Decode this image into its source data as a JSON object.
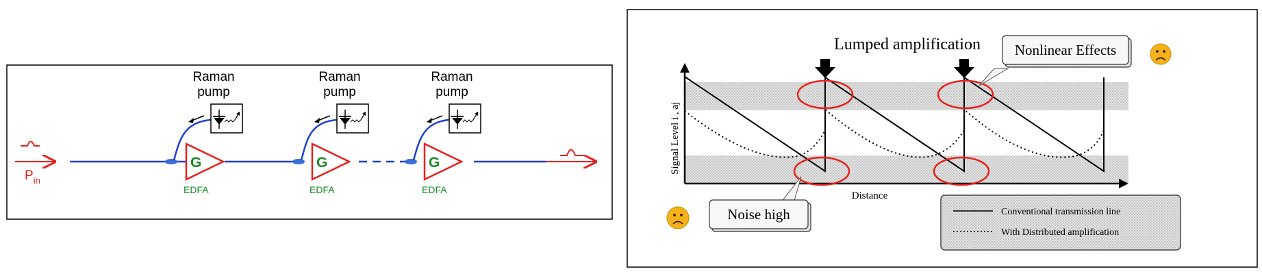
{
  "left_panel": {
    "pump_label_line1": "Raman",
    "pump_label_line2": "pump",
    "amp_symbol": "G",
    "amp_label": "EDFA",
    "input_label_main": "P",
    "input_label_sub": "in",
    "pump_count": 3,
    "colors": {
      "fiber": "#1f3fd6",
      "signal": "#e8201c",
      "amp": "#e8201c",
      "amp_text": "#1a8a2a",
      "coupler": "#3a6fd8"
    }
  },
  "right_panel": {
    "lumped_label": "Lumped amplification",
    "nonlinear_label": "Nonlinear Effects",
    "noise_label": "Noise high",
    "ylabel": "Signal Level  ",
    "ylabel_units": "i , aj",
    "xlabel": "Distance",
    "legend": [
      {
        "style": "solid",
        "label": "Conventional transmission line"
      },
      {
        "style": "dotted",
        "label": "With Distributed amplification"
      }
    ],
    "sad_face_icon": "sad-face-icon",
    "colors": {
      "ellipse": "#e8201c",
      "shading": "#cfcfcf",
      "face": "#f5b21a"
    }
  }
}
